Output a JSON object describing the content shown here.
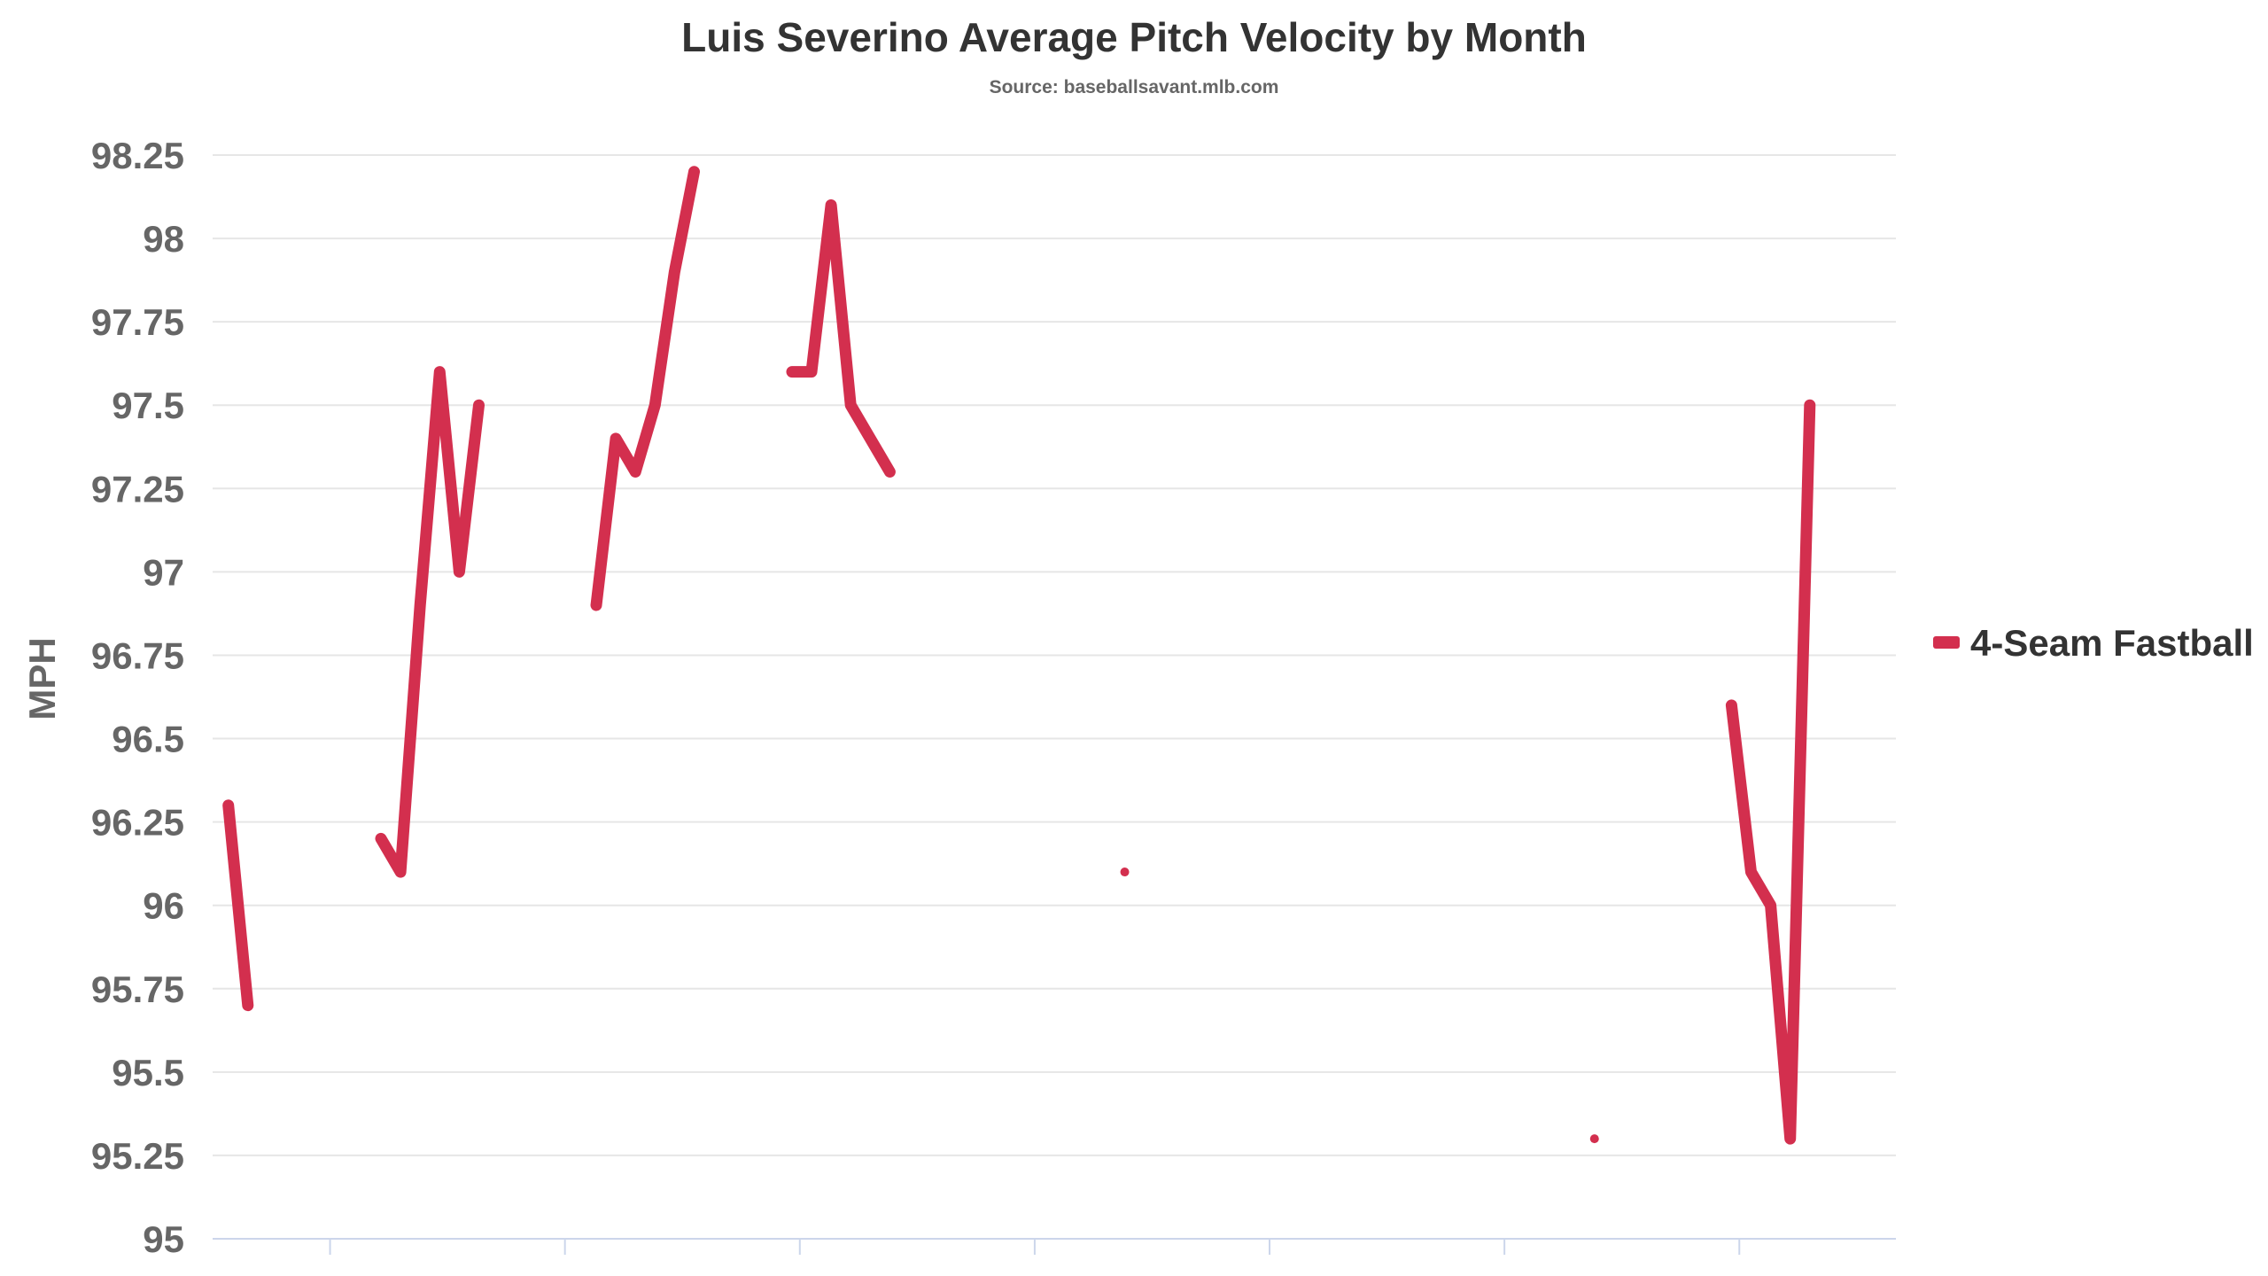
{
  "chart_data": {
    "type": "line",
    "title": "Luis Severino Average Pitch Velocity by Month",
    "subtitle": "Source: baseballsavant.mlb.com",
    "ylabel": "MPH",
    "xlabel": "",
    "ylim": [
      95,
      98.25
    ],
    "yticks": [
      "95",
      "95.25",
      "95.5",
      "95.75",
      "96",
      "96.25",
      "96.5",
      "96.75",
      "97",
      "97.25",
      "97.5",
      "97.75",
      "98",
      "98.25"
    ],
    "x_range": [
      0,
      43
    ],
    "x_tick_positions": [
      3,
      9,
      15,
      21,
      27,
      33,
      39
    ],
    "grid": true,
    "legend_position": "right",
    "colors": {
      "series": "#d32f4e",
      "grid": "#e6e6e6",
      "axis": "#ccd6eb"
    },
    "series": [
      {
        "name": "4-Seam Fastball",
        "points": [
          [
            0.4,
            96.3
          ],
          [
            0.9,
            95.7
          ],
          null,
          [
            4.3,
            96.2
          ],
          [
            4.8,
            96.1
          ],
          [
            5.3,
            96.9
          ],
          [
            5.8,
            97.6
          ],
          [
            6.3,
            97.0
          ],
          [
            6.8,
            97.5
          ],
          null,
          [
            9.8,
            96.9
          ],
          [
            10.3,
            97.4
          ],
          [
            10.8,
            97.3
          ],
          [
            11.3,
            97.5
          ],
          [
            11.8,
            97.9
          ],
          [
            12.3,
            98.2
          ],
          null,
          [
            14.8,
            97.6
          ],
          [
            15.3,
            97.6
          ],
          [
            15.8,
            98.1
          ],
          [
            16.3,
            97.5
          ],
          [
            16.8,
            97.4
          ],
          [
            17.3,
            97.3
          ],
          null,
          [
            23.3,
            96.1
          ],
          null,
          [
            35.3,
            95.3
          ],
          null,
          [
            38.8,
            96.6
          ],
          [
            39.3,
            96.1
          ],
          [
            39.8,
            96.0
          ],
          [
            40.3,
            95.3
          ],
          [
            40.8,
            97.5
          ]
        ]
      }
    ]
  }
}
